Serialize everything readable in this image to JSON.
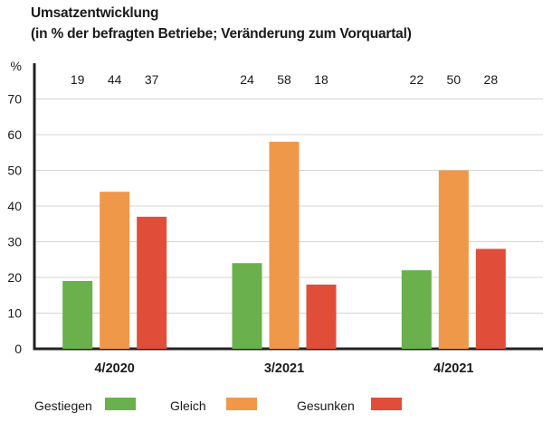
{
  "title": "Umsatzentwicklung",
  "subtitle": "(in % der befragten Betriebe; Veränderung zum Vorquartal)",
  "chart_data": {
    "type": "bar",
    "ylabel": "%",
    "ylim": [
      0,
      80
    ],
    "yticks": [
      0,
      10,
      20,
      30,
      40,
      50,
      60,
      70
    ],
    "categories": [
      "4/2020",
      "3/2021",
      "4/2021"
    ],
    "series": [
      {
        "name": "Gestiegen",
        "color": "#6ab04c",
        "values": [
          19,
          24,
          22
        ]
      },
      {
        "name": "Gleich",
        "color": "#f0984a",
        "values": [
          44,
          58,
          50
        ]
      },
      {
        "name": "Gesunken",
        "color": "#e04e39",
        "values": [
          37,
          18,
          28
        ]
      }
    ],
    "grid": true,
    "legend": "bottom"
  }
}
